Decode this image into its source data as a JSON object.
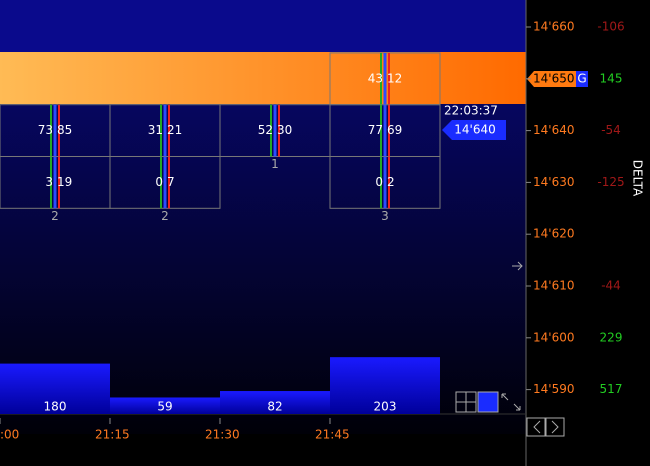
{
  "price_rows": [
    {
      "price": "14'660",
      "delta": -106
    },
    {
      "price": "14'650",
      "delta": 145
    },
    {
      "price": "14'640",
      "delta": -54
    },
    {
      "price": "14'630",
      "delta": -125
    },
    {
      "price": "14'620"
    },
    {
      "price": "14'610",
      "delta": -44
    },
    {
      "price": "14'600",
      "delta": 229
    },
    {
      "price": "14'590",
      "delta": 517
    }
  ],
  "columns": [
    {
      "time": ":00",
      "cells": [
        null,
        null,
        {
          "bid": 73,
          "ask": 85
        },
        {
          "bid": 3,
          "ask": 19
        }
      ],
      "count": "2",
      "volume": 180
    },
    {
      "time": "21:15",
      "cells": [
        null,
        null,
        {
          "bid": 31,
          "ask": 21
        },
        {
          "bid": 0,
          "ask": 7
        }
      ],
      "count": "2",
      "volume": 59
    },
    {
      "time": "21:30",
      "cells": [
        null,
        null,
        {
          "bid": 52,
          "ask": 30
        }
      ],
      "count": "1",
      "volume": 82
    },
    {
      "time": "21:45",
      "cells": [
        null,
        {
          "bid": 43,
          "ask": 12
        },
        {
          "bid": 77,
          "ask": 69
        },
        {
          "bid": 0,
          "ask": 2
        }
      ],
      "count": "3",
      "volume": 203
    }
  ],
  "delta_header": "DELTA",
  "marker": "G",
  "clock": "22:03:37",
  "last_price": "14'640"
}
